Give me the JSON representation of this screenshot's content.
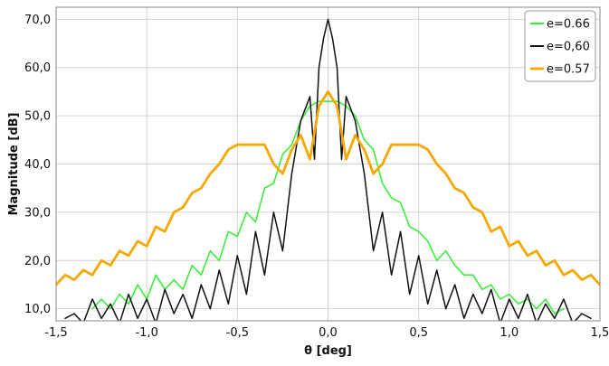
{
  "chart_data": {
    "type": "line",
    "title": "",
    "xlabel": "θ [deg]",
    "ylabel": "Magnitude [dB]",
    "xlim": [
      -1.5,
      1.5
    ],
    "ylim": [
      7.5,
      72.5
    ],
    "grid": true,
    "legend_position": "top-right",
    "x_ticks": [
      {
        "value": -1.5,
        "label": "-1,5"
      },
      {
        "value": -1.0,
        "label": "-1,0"
      },
      {
        "value": -0.5,
        "label": "-0,5"
      },
      {
        "value": 0.0,
        "label": "0,0"
      },
      {
        "value": 0.5,
        "label": "0,5"
      },
      {
        "value": 1.0,
        "label": "1,0"
      },
      {
        "value": 1.5,
        "label": "1,5"
      }
    ],
    "y_ticks": [
      {
        "value": 10,
        "label": "10,0"
      },
      {
        "value": 20,
        "label": "20,0"
      },
      {
        "value": 30,
        "label": "30,0"
      },
      {
        "value": 40,
        "label": "40,0"
      },
      {
        "value": 50,
        "label": "50,0"
      },
      {
        "value": 60,
        "label": "60,0"
      },
      {
        "value": 70,
        "label": "70,0"
      }
    ],
    "series": [
      {
        "name": "e=0.66",
        "color": "#33ee33",
        "stroke_width": 1.5,
        "x": [
          -1.3,
          -1.25,
          -1.2,
          -1.15,
          -1.1,
          -1.05,
          -1.0,
          -0.95,
          -0.9,
          -0.85,
          -0.8,
          -0.75,
          -0.7,
          -0.65,
          -0.6,
          -0.55,
          -0.5,
          -0.45,
          -0.4,
          -0.35,
          -0.3,
          -0.25,
          -0.2,
          -0.15,
          -0.1,
          -0.05,
          0.0,
          0.05,
          0.1,
          0.15,
          0.2,
          0.25,
          0.3,
          0.35,
          0.4,
          0.45,
          0.5,
          0.55,
          0.6,
          0.65,
          0.7,
          0.75,
          0.8,
          0.85,
          0.9,
          0.95,
          1.0,
          1.05,
          1.1,
          1.15,
          1.2,
          1.25,
          1.3
        ],
        "y": [
          10,
          12,
          10,
          13,
          11,
          15,
          12,
          17,
          14,
          16,
          14,
          19,
          17,
          22,
          20,
          26,
          25,
          30,
          28,
          35,
          36,
          42,
          44,
          49,
          52,
          53,
          53,
          53,
          52,
          50,
          45,
          43,
          36,
          33,
          32,
          27,
          26,
          24,
          20,
          22,
          19,
          17,
          17,
          14,
          15,
          12,
          13,
          11,
          12,
          10,
          12,
          9,
          10
        ]
      },
      {
        "name": "e=0,60",
        "color": "#111111",
        "stroke_width": 1.5,
        "x": [
          -1.45,
          -1.4,
          -1.35,
          -1.3,
          -1.25,
          -1.2,
          -1.15,
          -1.1,
          -1.05,
          -1.0,
          -0.95,
          -0.9,
          -0.85,
          -0.8,
          -0.75,
          -0.7,
          -0.65,
          -0.6,
          -0.55,
          -0.5,
          -0.45,
          -0.4,
          -0.35,
          -0.3,
          -0.25,
          -0.2,
          -0.15,
          -0.1,
          -0.075,
          -0.05,
          -0.025,
          0.0,
          0.025,
          0.05,
          0.075,
          0.1,
          0.15,
          0.2,
          0.25,
          0.3,
          0.35,
          0.4,
          0.45,
          0.5,
          0.55,
          0.6,
          0.65,
          0.7,
          0.75,
          0.8,
          0.85,
          0.9,
          0.95,
          1.0,
          1.05,
          1.1,
          1.15,
          1.2,
          1.25,
          1.3,
          1.35,
          1.4,
          1.45
        ],
        "y": [
          8,
          9,
          7,
          12,
          8,
          11,
          7,
          13,
          8,
          12,
          7,
          14,
          9,
          13,
          8,
          15,
          10,
          18,
          11,
          21,
          13,
          26,
          17,
          30,
          22,
          38,
          49,
          54,
          41,
          60,
          66,
          70,
          66,
          60,
          41,
          54,
          49,
          38,
          22,
          30,
          17,
          26,
          13,
          21,
          11,
          18,
          10,
          15,
          8,
          13,
          9,
          14,
          7,
          12,
          8,
          13,
          7,
          11,
          8,
          12,
          7,
          9,
          8
        ]
      },
      {
        "name": "e=0.57",
        "color": "#f5a800",
        "stroke_width": 2.8,
        "x": [
          -1.5,
          -1.45,
          -1.4,
          -1.35,
          -1.3,
          -1.25,
          -1.2,
          -1.15,
          -1.1,
          -1.05,
          -1.0,
          -0.95,
          -0.9,
          -0.85,
          -0.8,
          -0.75,
          -0.7,
          -0.65,
          -0.6,
          -0.55,
          -0.5,
          -0.45,
          -0.4,
          -0.35,
          -0.3,
          -0.25,
          -0.2,
          -0.15,
          -0.1,
          -0.05,
          0.0,
          0.05,
          0.1,
          0.15,
          0.2,
          0.25,
          0.3,
          0.35,
          0.4,
          0.45,
          0.5,
          0.55,
          0.6,
          0.65,
          0.7,
          0.75,
          0.8,
          0.85,
          0.9,
          0.95,
          1.0,
          1.05,
          1.1,
          1.15,
          1.2,
          1.25,
          1.3,
          1.35,
          1.4,
          1.45,
          1.5
        ],
        "y": [
          15,
          17,
          16,
          18,
          17,
          20,
          19,
          22,
          21,
          24,
          23,
          27,
          26,
          30,
          31,
          34,
          35,
          38,
          40,
          43,
          44,
          44,
          44,
          44,
          40,
          38,
          43,
          46,
          41,
          52,
          55,
          52,
          41,
          46,
          43,
          38,
          40,
          44,
          44,
          44,
          44,
          43,
          40,
          38,
          35,
          34,
          31,
          30,
          26,
          27,
          23,
          24,
          21,
          22,
          19,
          20,
          17,
          18,
          16,
          17,
          15
        ]
      }
    ]
  }
}
